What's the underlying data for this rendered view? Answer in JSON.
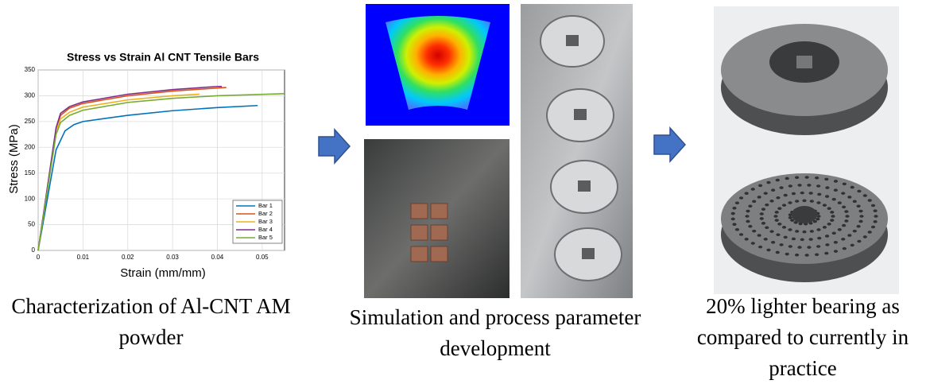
{
  "chart_data": {
    "type": "line",
    "title": "Stress vs Strain Al CNT Tensile Bars",
    "x_label": "Strain (mm/mm)",
    "y_label": "Stress (MPa)",
    "xlim": [
      0,
      0.055
    ],
    "xticks": [
      0,
      0.01,
      0.02,
      0.03,
      0.04,
      0.05
    ],
    "ylim": [
      0,
      350
    ],
    "yticks": [
      0,
      50,
      100,
      150,
      200,
      250,
      300,
      350
    ],
    "grid": true,
    "legend": "lower right",
    "series": [
      {
        "name": "Bar 1",
        "color": "#0072bd",
        "x": [
          0,
          0.004,
          0.006,
          0.008,
          0.01,
          0.02,
          0.03,
          0.04,
          0.049
        ],
        "values": [
          0,
          195,
          232,
          244,
          250,
          262,
          271,
          277,
          281
        ]
      },
      {
        "name": "Bar 2",
        "color": "#d95319",
        "x": [
          0,
          0.004,
          0.005,
          0.007,
          0.01,
          0.02,
          0.03,
          0.04,
          0.042
        ],
        "values": [
          0,
          235,
          262,
          276,
          285,
          300,
          309,
          315,
          316
        ]
      },
      {
        "name": "Bar 3",
        "color": "#edb120",
        "x": [
          0,
          0.004,
          0.005,
          0.007,
          0.01,
          0.02,
          0.03,
          0.036
        ],
        "values": [
          0,
          232,
          255,
          268,
          278,
          292,
          300,
          303
        ]
      },
      {
        "name": "Bar 4",
        "color": "#7e2f8e",
        "x": [
          0,
          0.004,
          0.005,
          0.007,
          0.01,
          0.02,
          0.03,
          0.04,
          0.041
        ],
        "values": [
          0,
          238,
          266,
          279,
          288,
          303,
          312,
          318,
          318
        ]
      },
      {
        "name": "Bar 5",
        "color": "#77ac30",
        "x": [
          0,
          0.004,
          0.005,
          0.007,
          0.01,
          0.02,
          0.03,
          0.04,
          0.055
        ],
        "values": [
          0,
          225,
          248,
          262,
          272,
          287,
          295,
          300,
          304
        ]
      }
    ]
  },
  "captions": [
    "Characterization of Al-CNT AM powder",
    "Simulation and process parameter development",
    "20% lighter bearing as compared to currently in practice"
  ]
}
